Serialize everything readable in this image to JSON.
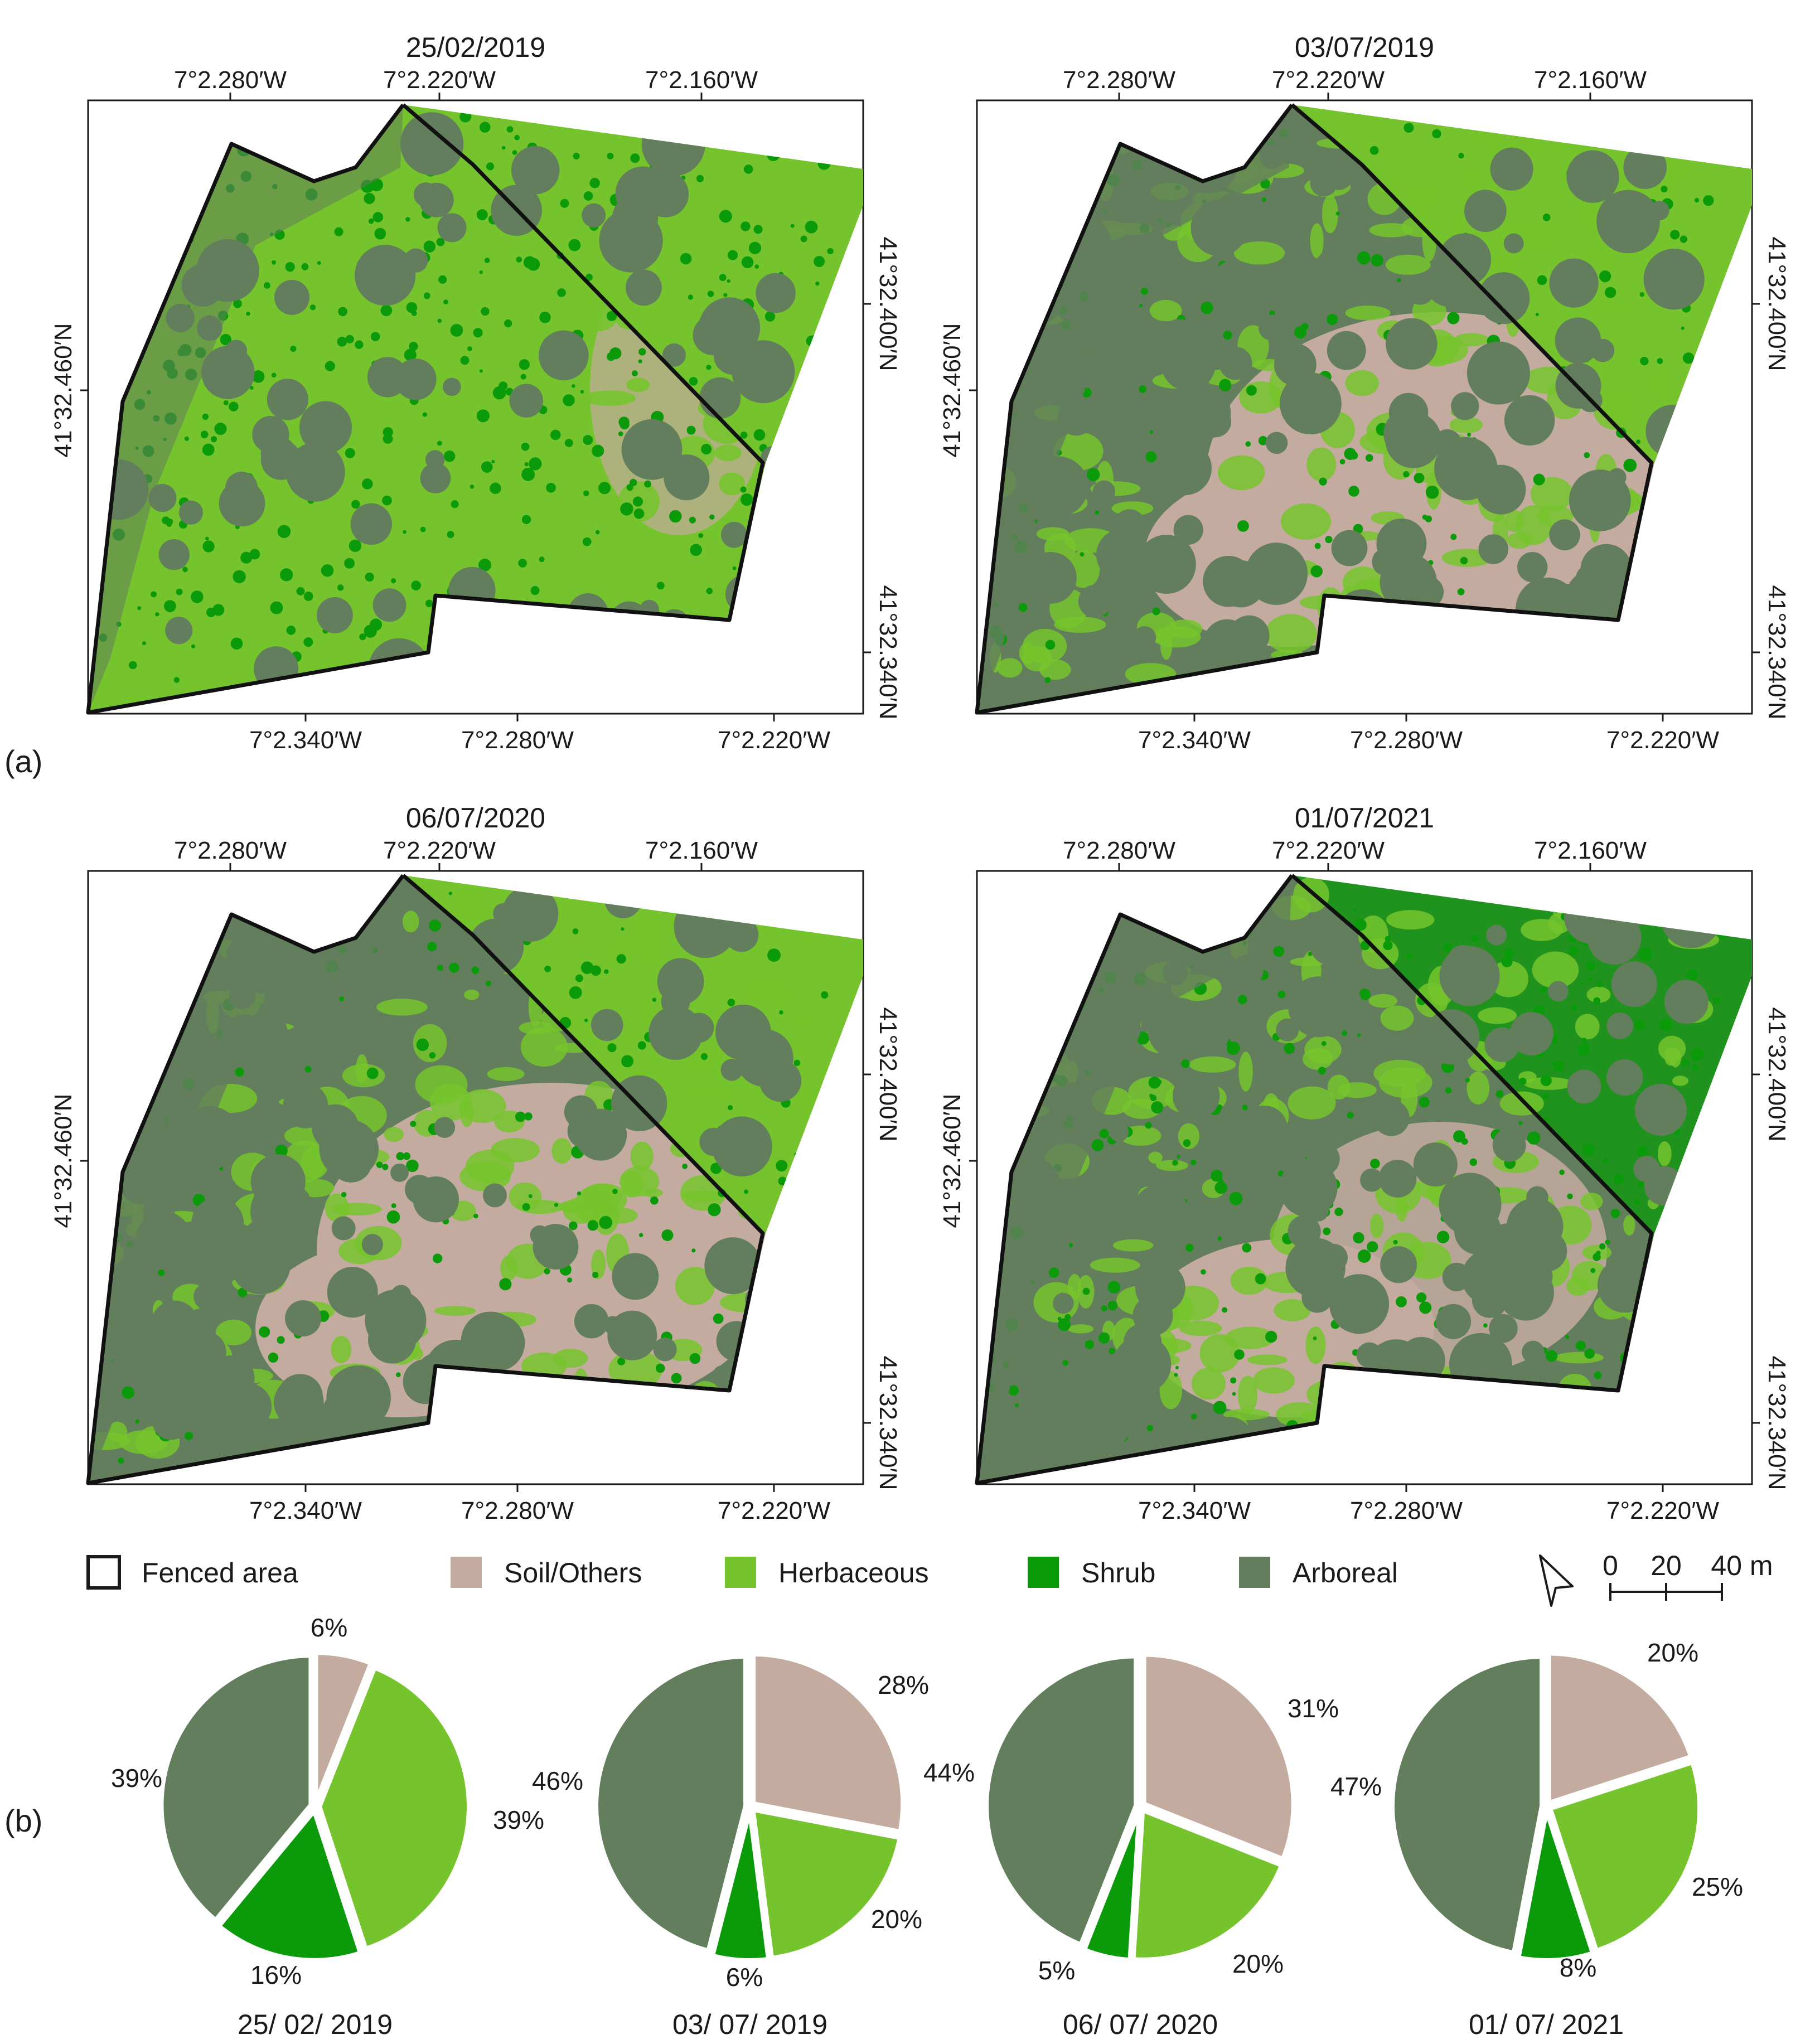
{
  "figure": {
    "panel_a_label": "(a)",
    "panel_b_label": "(b)"
  },
  "maps": [
    {
      "date": "25/02/2019",
      "top_ticks": [
        "7°2.280′W",
        "7°2.220′W",
        "7°2.160′W"
      ],
      "bottom_ticks": [
        "7°2.340′W",
        "7°2.280′W",
        "7°2.220′W"
      ],
      "left_ticks": [
        "41°32.460′N"
      ],
      "right_ticks": [
        "41°32.400′N",
        "41°32.340′N"
      ],
      "dominant_classes": [
        "herbaceous",
        "arboreal",
        "shrub"
      ]
    },
    {
      "date": "03/07/2019",
      "top_ticks": [
        "7°2.280′W",
        "7°2.220′W",
        "7°2.160′W"
      ],
      "bottom_ticks": [
        "7°2.340′W",
        "7°2.280′W",
        "7°2.220′W"
      ],
      "left_ticks": [
        "41°32.460′N"
      ],
      "right_ticks": [
        "41°32.400′N",
        "41°32.340′N"
      ],
      "dominant_classes": [
        "arboreal",
        "soil",
        "herbaceous"
      ]
    },
    {
      "date": "06/07/2020",
      "top_ticks": [
        "7°2.280′W",
        "7°2.220′W",
        "7°2.160′W"
      ],
      "bottom_ticks": [
        "7°2.340′W",
        "7°2.280′W",
        "7°2.220′W"
      ],
      "left_ticks": [
        "41°32.460′N"
      ],
      "right_ticks": [
        "41°32.400′N",
        "41°32.340′N"
      ],
      "dominant_classes": [
        "arboreal",
        "soil",
        "herbaceous"
      ]
    },
    {
      "date": "01/07/2021",
      "top_ticks": [
        "7°2.280′W",
        "7°2.220′W",
        "7°2.160′W"
      ],
      "bottom_ticks": [
        "7°2.340′W",
        "7°2.280′W",
        "7°2.220′W"
      ],
      "left_ticks": [
        "41°32.460′N"
      ],
      "right_ticks": [
        "41°32.400′N",
        "41°32.340′N"
      ],
      "dominant_classes": [
        "arboreal",
        "herbaceous",
        "shrub"
      ]
    }
  ],
  "legend": {
    "items": [
      {
        "label": "Fenced area",
        "color": "#ffffff",
        "border": "#1a1a1a"
      },
      {
        "label": "Soil/Others",
        "color": "#c4aba0"
      },
      {
        "label": "Herbaceous",
        "color": "#76c42d"
      },
      {
        "label": "Shrub",
        "color": "#0a9a0a"
      },
      {
        "label": "Arboreal",
        "color": "#637e5c"
      }
    ],
    "north_arrow": "north-arrow-icon",
    "scale_bar": {
      "labels": [
        "0",
        "20",
        "40 m"
      ],
      "values_m": [
        0,
        20,
        40
      ]
    }
  },
  "colors": {
    "soil": "#c4aba0",
    "herbaceous": "#76c42d",
    "shrub": "#0a9a0a",
    "arboreal": "#637e5c",
    "fence": "#111111"
  },
  "chart_data": [
    {
      "type": "pie",
      "title": "25/ 02/ 2019",
      "categories": [
        "Soil/Others",
        "Herbaceous",
        "Shrub",
        "Arboreal"
      ],
      "values": [
        6,
        39,
        16,
        39
      ],
      "labels": [
        "6%",
        "39%",
        "16%",
        "39%"
      ],
      "colors": [
        "#c4aba0",
        "#76c42d",
        "#0a9a0a",
        "#637e5c"
      ]
    },
    {
      "type": "pie",
      "title": "03/ 07/ 2019",
      "categories": [
        "Soil/Others",
        "Herbaceous",
        "Shrub",
        "Arboreal"
      ],
      "values": [
        28,
        20,
        6,
        46
      ],
      "labels": [
        "28%",
        "20%",
        "6%",
        "46%"
      ],
      "colors": [
        "#c4aba0",
        "#76c42d",
        "#0a9a0a",
        "#637e5c"
      ]
    },
    {
      "type": "pie",
      "title": "06/ 07/ 2020",
      "categories": [
        "Soil/Others",
        "Herbaceous",
        "Shrub",
        "Arboreal"
      ],
      "values": [
        31,
        20,
        5,
        44
      ],
      "labels": [
        "31%",
        "20%",
        "5%",
        "44%"
      ],
      "colors": [
        "#c4aba0",
        "#76c42d",
        "#0a9a0a",
        "#637e5c"
      ]
    },
    {
      "type": "pie",
      "title": "01/ 07/ 2021",
      "categories": [
        "Soil/Others",
        "Herbaceous",
        "Shrub",
        "Arboreal"
      ],
      "values": [
        20,
        25,
        8,
        47
      ],
      "labels": [
        "20%",
        "25%",
        "8%",
        "47%"
      ],
      "colors": [
        "#c4aba0",
        "#76c42d",
        "#0a9a0a",
        "#637e5c"
      ]
    }
  ]
}
